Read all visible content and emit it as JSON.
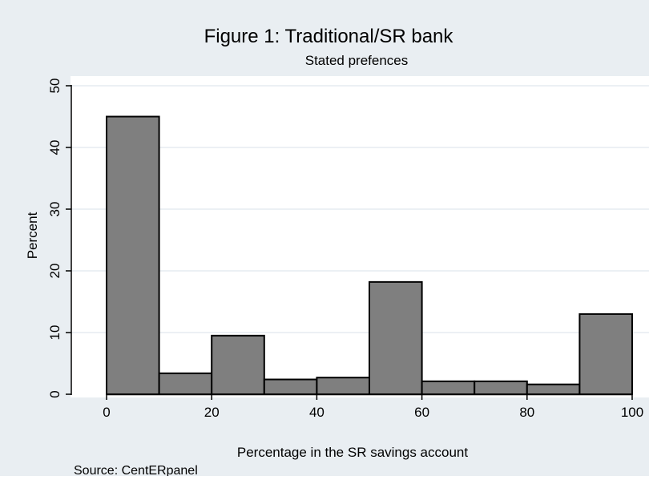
{
  "chart_data": {
    "type": "bar",
    "title": "Figure 1: Traditional/SR bank",
    "subtitle": "Stated prefences",
    "xlabel": "Percentage in the SR savings account",
    "ylabel": "Percent",
    "note": "Source: CentERpanel",
    "xlim": [
      0,
      100
    ],
    "ylim": [
      0,
      50
    ],
    "x_ticks": [
      0,
      20,
      40,
      60,
      80,
      100
    ],
    "y_ticks": [
      0,
      10,
      20,
      30,
      40,
      50
    ],
    "grid": true,
    "bins": [
      {
        "start": 0,
        "end": 10,
        "value": 45.0
      },
      {
        "start": 10,
        "end": 20,
        "value": 3.4
      },
      {
        "start": 20,
        "end": 30,
        "value": 9.5
      },
      {
        "start": 30,
        "end": 40,
        "value": 2.4
      },
      {
        "start": 40,
        "end": 50,
        "value": 2.7
      },
      {
        "start": 50,
        "end": 60,
        "value": 18.2
      },
      {
        "start": 60,
        "end": 70,
        "value": 2.1
      },
      {
        "start": 70,
        "end": 80,
        "value": 2.1
      },
      {
        "start": 80,
        "end": 90,
        "value": 1.6
      },
      {
        "start": 90,
        "end": 100,
        "value": 13.0
      }
    ]
  },
  "colors": {
    "outer_background": "#e9eef2",
    "plot_background": "#ffffff",
    "bar_fill": "#7f7f7f",
    "bar_stroke": "#000000",
    "grid": "#e6ecf0"
  }
}
